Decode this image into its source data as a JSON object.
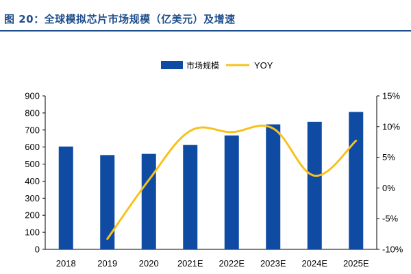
{
  "chart_data": {
    "type": "bar",
    "title": "图 20：全球模拟芯片市场规模（亿美元）及增速",
    "categories": [
      "2018",
      "2019",
      "2020",
      "2021E",
      "2022E",
      "2023E",
      "2024E",
      "2025E"
    ],
    "series": [
      {
        "name": "市场规模",
        "type": "bar",
        "axis": "left",
        "color": "#0f4aa3",
        "values": [
          603,
          553,
          560,
          612,
          668,
          733,
          748,
          806
        ]
      },
      {
        "name": "YOY",
        "type": "line",
        "axis": "right",
        "color": "#f7c21b",
        "values": [
          null,
          -8.3,
          1.3,
          9.3,
          9.1,
          9.7,
          2.0,
          7.7
        ]
      }
    ],
    "y_left": {
      "min": 0,
      "max": 900,
      "step": 100,
      "ticks": [
        "0",
        "100",
        "200",
        "300",
        "400",
        "500",
        "600",
        "700",
        "800",
        "900"
      ]
    },
    "y_right": {
      "min": -10,
      "max": 15,
      "step": 5,
      "ticks": [
        "-10%",
        "-5%",
        "0%",
        "5%",
        "10%",
        "15%"
      ]
    },
    "legend": {
      "position": "top-center"
    },
    "grid": false
  }
}
